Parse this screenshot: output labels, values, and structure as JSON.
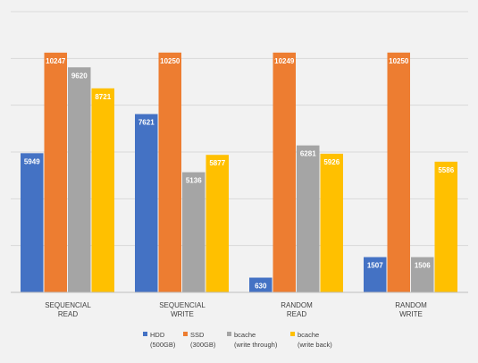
{
  "chart_data": {
    "type": "bar",
    "categories": [
      [
        "SEQUENCIAL",
        "READ"
      ],
      [
        "SEQUENCIAL",
        "WRITE"
      ],
      [
        "RANDOM",
        "READ"
      ],
      [
        "RANDOM",
        "WRITE"
      ]
    ],
    "series": [
      {
        "name": [
          "HDD",
          "(500GB)"
        ],
        "color": "#4472c4",
        "values": [
          5949,
          7621,
          630,
          1507
        ]
      },
      {
        "name": [
          "SSD",
          "(300GB)"
        ],
        "color": "#ed7d31",
        "values": [
          10247,
          10250,
          10249,
          10250
        ]
      },
      {
        "name": [
          "bcache",
          "(write through)"
        ],
        "color": "#a5a5a5",
        "values": [
          9620,
          5136,
          6281,
          1506
        ]
      },
      {
        "name": [
          "bcache",
          "(write back)"
        ],
        "color": "#ffc000",
        "values": [
          8721,
          5877,
          5926,
          5586
        ]
      }
    ],
    "ylim": [
      0,
      12000
    ],
    "gridlines": [
      0,
      2000,
      4000,
      6000,
      8000,
      10000,
      12000
    ],
    "grid": true,
    "legend_position": "bottom",
    "data_labels": "inside-top"
  }
}
